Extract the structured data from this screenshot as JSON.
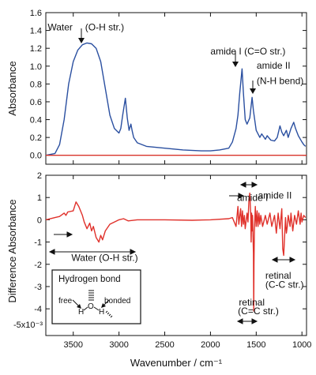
{
  "chart_data": [
    {
      "type": "line",
      "panel": "top",
      "ylabel": "Absorbance",
      "xlabel": "",
      "xlim": [
        3800,
        950
      ],
      "ylim": [
        -0.1,
        1.6
      ],
      "x_ticks": [
        3500,
        3000,
        2500,
        2000,
        1500,
        1000
      ],
      "y_ticks": [
        0.0,
        0.2,
        0.4,
        0.6,
        0.8,
        1.0,
        1.2,
        1.4,
        1.6
      ],
      "y_tick_labels": [
        "0.0",
        "0.2",
        "0.4",
        "0.6",
        "0.8",
        "1.0",
        "1.2",
        "1.4",
        "1.6"
      ],
      "grid": false,
      "series": [
        {
          "color": "#2a4fa0",
          "points": [
            [
              3800,
              0.0
            ],
            [
              3700,
              0.02
            ],
            [
              3650,
              0.12
            ],
            [
              3600,
              0.4
            ],
            [
              3550,
              0.8
            ],
            [
              3500,
              1.05
            ],
            [
              3450,
              1.18
            ],
            [
              3400,
              1.24
            ],
            [
              3350,
              1.26
            ],
            [
              3300,
              1.25
            ],
            [
              3250,
              1.2
            ],
            [
              3200,
              1.05
            ],
            [
              3150,
              0.75
            ],
            [
              3100,
              0.45
            ],
            [
              3050,
              0.3
            ],
            [
              3000,
              0.25
            ],
            [
              2980,
              0.3
            ],
            [
              2960,
              0.45
            ],
            [
              2930,
              0.64
            ],
            [
              2910,
              0.42
            ],
            [
              2890,
              0.28
            ],
            [
              2870,
              0.35
            ],
            [
              2855,
              0.27
            ],
            [
              2840,
              0.2
            ],
            [
              2800,
              0.14
            ],
            [
              2700,
              0.1
            ],
            [
              2500,
              0.08
            ],
            [
              2300,
              0.06
            ],
            [
              2100,
              0.05
            ],
            [
              2000,
              0.05
            ],
            [
              1900,
              0.06
            ],
            [
              1800,
              0.08
            ],
            [
              1760,
              0.15
            ],
            [
              1720,
              0.3
            ],
            [
              1700,
              0.45
            ],
            [
              1680,
              0.7
            ],
            [
              1655,
              0.97
            ],
            [
              1640,
              0.7
            ],
            [
              1620,
              0.4
            ],
            [
              1600,
              0.35
            ],
            [
              1570,
              0.42
            ],
            [
              1545,
              0.65
            ],
            [
              1530,
              0.5
            ],
            [
              1500,
              0.28
            ],
            [
              1460,
              0.2
            ],
            [
              1440,
              0.24
            ],
            [
              1400,
              0.18
            ],
            [
              1380,
              0.22
            ],
            [
              1340,
              0.17
            ],
            [
              1300,
              0.16
            ],
            [
              1270,
              0.2
            ],
            [
              1240,
              0.33
            ],
            [
              1220,
              0.26
            ],
            [
              1200,
              0.22
            ],
            [
              1170,
              0.28
            ],
            [
              1150,
              0.2
            ],
            [
              1120,
              0.3
            ],
            [
              1090,
              0.37
            ],
            [
              1070,
              0.3
            ],
            [
              1040,
              0.22
            ],
            [
              1000,
              0.15
            ],
            [
              980,
              0.12
            ],
            [
              960,
              0.1
            ]
          ]
        },
        {
          "color": "#d9342b",
          "points": [
            [
              3800,
              0.0
            ],
            [
              950,
              0.0
            ]
          ]
        }
      ],
      "annotations": [
        {
          "text": "Water",
          "x": 3780,
          "y": 1.4
        },
        {
          "text": "(O-H str.)",
          "x": 3370,
          "y": 1.4
        },
        {
          "text": "amide I (C=O str.)",
          "x": 2000,
          "y": 1.13
        },
        {
          "text": "amide II",
          "x": 1495,
          "y": 0.97
        },
        {
          "text": "(N-H bend)",
          "x": 1495,
          "y": 0.8
        }
      ]
    },
    {
      "type": "line",
      "panel": "bottom",
      "ylabel": "Difference Absorbance",
      "xlabel": "Wavenumber / cm⁻¹",
      "xlim": [
        3800,
        950
      ],
      "ylim": [
        -5.2,
        2.0
      ],
      "scale_label": "-5x10⁻³",
      "x_ticks": [
        3500,
        3000,
        2500,
        2000,
        1500,
        1000
      ],
      "x_tick_labels": [
        "3500",
        "3000",
        "2500",
        "2000",
        "1500",
        "1000"
      ],
      "y_ticks": [
        2,
        1,
        0,
        -1,
        -2,
        -3,
        -4
      ],
      "y_tick_labels": [
        "2",
        "1",
        "0",
        "-1",
        "-2",
        "-3",
        "-4"
      ],
      "grid": false,
      "series": [
        {
          "color": "#e0312b",
          "points": [
            [
              3800,
              0.0
            ],
            [
              3700,
              0.1
            ],
            [
              3650,
              0.15
            ],
            [
              3600,
              0.3
            ],
            [
              3580,
              0.2
            ],
            [
              3560,
              0.35
            ],
            [
              3500,
              0.4
            ],
            [
              3470,
              0.8
            ],
            [
              3440,
              0.6
            ],
            [
              3420,
              0.4
            ],
            [
              3400,
              0.2
            ],
            [
              3380,
              -0.1
            ],
            [
              3350,
              -0.4
            ],
            [
              3320,
              -0.15
            ],
            [
              3300,
              -0.5
            ],
            [
              3280,
              -0.3
            ],
            [
              3250,
              -0.8
            ],
            [
              3220,
              -1.0
            ],
            [
              3200,
              -0.7
            ],
            [
              3180,
              -0.9
            ],
            [
              3150,
              -0.5
            ],
            [
              3100,
              -0.2
            ],
            [
              3050,
              -0.1
            ],
            [
              3000,
              0.0
            ],
            [
              2950,
              0.05
            ],
            [
              2900,
              -0.05
            ],
            [
              2800,
              0.0
            ],
            [
              2500,
              0.0
            ],
            [
              2200,
              -0.02
            ],
            [
              2000,
              0.0
            ],
            [
              1800,
              0.05
            ],
            [
              1760,
              0.1
            ],
            [
              1720,
              -0.3
            ],
            [
              1700,
              0.6
            ],
            [
              1690,
              -0.2
            ],
            [
              1670,
              0.5
            ],
            [
              1660,
              -0.3
            ],
            [
              1650,
              0.4
            ],
            [
              1640,
              -0.2
            ],
            [
              1630,
              0.2
            ],
            [
              1620,
              -0.4
            ],
            [
              1600,
              0.3
            ],
            [
              1590,
              -0.1
            ],
            [
              1580,
              0.9
            ],
            [
              1570,
              1.2
            ],
            [
              1560,
              0.2
            ],
            [
              1555,
              -1.0
            ],
            [
              1550,
              0.3
            ],
            [
              1545,
              -0.5
            ],
            [
              1540,
              0.2
            ],
            [
              1530,
              -1.5
            ],
            [
              1527,
              -4.1
            ],
            [
              1524,
              -2.0
            ],
            [
              1520,
              -0.5
            ],
            [
              1510,
              0.6
            ],
            [
              1500,
              -0.3
            ],
            [
              1490,
              0.4
            ],
            [
              1480,
              -0.3
            ],
            [
              1470,
              0.3
            ],
            [
              1460,
              -0.2
            ],
            [
              1450,
              0.2
            ],
            [
              1430,
              -0.3
            ],
            [
              1400,
              0.2
            ],
            [
              1380,
              -0.2
            ],
            [
              1350,
              0.3
            ],
            [
              1330,
              -0.3
            ],
            [
              1300,
              0.2
            ],
            [
              1280,
              -0.6
            ],
            [
              1260,
              0.3
            ],
            [
              1240,
              -0.4
            ],
            [
              1220,
              0.5
            ],
            [
              1210,
              -1.3
            ],
            [
              1200,
              -1.6
            ],
            [
              1190,
              -0.8
            ],
            [
              1180,
              0.1
            ],
            [
              1170,
              -0.6
            ],
            [
              1160,
              -0.3
            ],
            [
              1150,
              0.2
            ],
            [
              1130,
              -0.3
            ],
            [
              1120,
              0.3
            ],
            [
              1100,
              -0.5
            ],
            [
              1080,
              0.2
            ],
            [
              1060,
              -0.2
            ],
            [
              1040,
              0.4
            ],
            [
              1020,
              -0.2
            ],
            [
              1010,
              0.3
            ],
            [
              1000,
              -0.1
            ],
            [
              980,
              0.2
            ],
            [
              960,
              0.1
            ]
          ]
        }
      ],
      "annotations": [
        {
          "text": "amide I",
          "x": 1710,
          "y": 0.85
        },
        {
          "text": "amide II",
          "x": 1480,
          "y": 0.95
        },
        {
          "text": "Water (O-H str.)",
          "x": 3520,
          "y": -1.85
        },
        {
          "text": "retinal",
          "x": 1400,
          "y": -2.65
        },
        {
          "text": "(C-C str.)",
          "x": 1400,
          "y": -3.05
        },
        {
          "text": "retinal",
          "x": 1690,
          "y": -3.85
        },
        {
          "text": "(C=C str.)",
          "x": 1700,
          "y": -4.25
        }
      ],
      "inset": {
        "title": "Hydrogen bond",
        "left_label": "free",
        "right_label": "bonded",
        "atoms": [
          "H",
          "O",
          "H"
        ]
      }
    }
  ]
}
